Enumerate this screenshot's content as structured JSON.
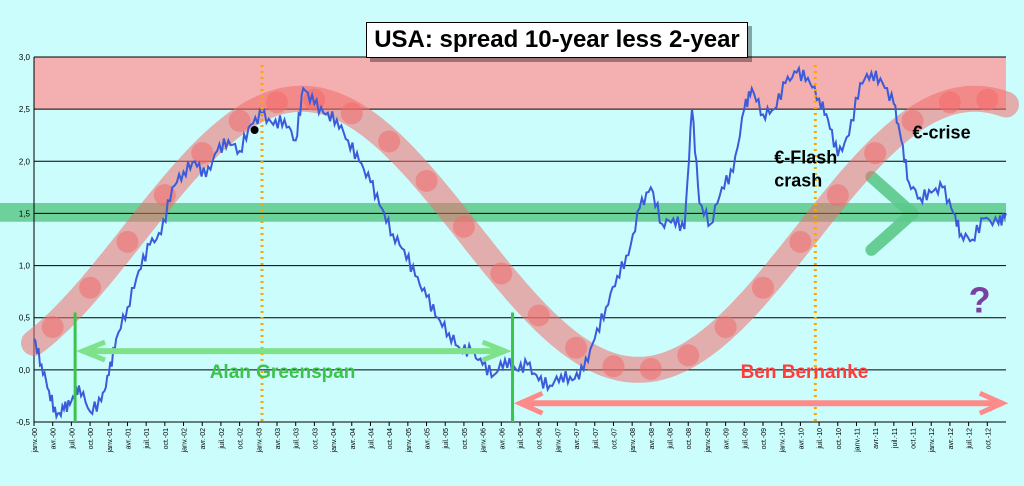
{
  "chart_data": {
    "type": "line",
    "title": "USA: spread 10-year less 2-year",
    "ylim": [
      -0.5,
      3.0
    ],
    "y_ticks": [
      "3,0",
      "2,5",
      "2,0",
      "1,5",
      "1,0",
      "0,5",
      "0,0",
      "-0,5"
    ],
    "y_tick_values": [
      3.0,
      2.5,
      2.0,
      1.5,
      1.0,
      0.5,
      0.0,
      -0.5
    ],
    "x_tick_labels": [
      "janv.-00",
      "avr.-00",
      "juil.-00",
      "oct.-00",
      "janv.-01",
      "avr.-01",
      "juil.-01",
      "oct.-01",
      "janv.-02",
      "avr.-02",
      "juil.-02",
      "oct.-02",
      "janv.-03",
      "avr.-03",
      "juil.-03",
      "oct.-03",
      "janv.-04",
      "avr.-04",
      "juil.-04",
      "oct.-04",
      "janv.-05",
      "avr.-05",
      "juil.-05",
      "oct.-05",
      "janv.-06",
      "avr.-06",
      "juil.-06",
      "oct.-06",
      "janv.-07",
      "avr.-07",
      "juil.-07",
      "oct.-07",
      "janv.-08",
      "avr.-08",
      "juil.-08",
      "oct.-08",
      "janv.-09",
      "avr.-09",
      "juil.-09",
      "oct.-09",
      "janv.-10",
      "avr.-10",
      "juil.-10",
      "oct.-10",
      "janv.-11",
      "avr.-11",
      "juil.-11",
      "oct.-11",
      "janv.-12",
      "avr.-12",
      "juil.-12",
      "oct.-12"
    ],
    "grid": true,
    "series": [
      {
        "color": "#3b5bdb",
        "points": [
          [
            2000.0,
            0.3
          ],
          [
            2000.1,
            0.05
          ],
          [
            2000.2,
            -0.2
          ],
          [
            2000.3,
            -0.45
          ],
          [
            2000.4,
            -0.38
          ],
          [
            2000.5,
            -0.3
          ],
          [
            2000.6,
            -0.15
          ],
          [
            2000.75,
            -0.4
          ],
          [
            2000.9,
            -0.3
          ],
          [
            2001.0,
            -0.05
          ],
          [
            2001.1,
            0.3
          ],
          [
            2001.25,
            0.6
          ],
          [
            2001.4,
            0.95
          ],
          [
            2001.55,
            1.2
          ],
          [
            2001.7,
            1.3
          ],
          [
            2001.85,
            1.75
          ],
          [
            2002.0,
            1.9
          ],
          [
            2002.15,
            2.0
          ],
          [
            2002.3,
            1.85
          ],
          [
            2002.45,
            2.1
          ],
          [
            2002.6,
            2.2
          ],
          [
            2002.75,
            2.1
          ],
          [
            2002.9,
            2.35
          ],
          [
            2003.05,
            2.45
          ],
          [
            2003.2,
            2.35
          ],
          [
            2003.35,
            2.4
          ],
          [
            2003.5,
            2.2
          ],
          [
            2003.6,
            2.7
          ],
          [
            2003.75,
            2.55
          ],
          [
            2003.9,
            2.45
          ],
          [
            2004.05,
            2.4
          ],
          [
            2004.2,
            2.2
          ],
          [
            2004.35,
            2.0
          ],
          [
            2004.5,
            1.8
          ],
          [
            2004.65,
            1.55
          ],
          [
            2004.8,
            1.3
          ],
          [
            2004.95,
            1.15
          ],
          [
            2005.1,
            0.9
          ],
          [
            2005.25,
            0.7
          ],
          [
            2005.4,
            0.5
          ],
          [
            2005.55,
            0.35
          ],
          [
            2005.7,
            0.2
          ],
          [
            2005.85,
            0.18
          ],
          [
            2006.0,
            0.05
          ],
          [
            2006.15,
            -0.05
          ],
          [
            2006.3,
            0.1
          ],
          [
            2006.45,
            0.0
          ],
          [
            2006.6,
            0.05
          ],
          [
            2006.75,
            -0.1
          ],
          [
            2006.9,
            -0.15
          ],
          [
            2007.05,
            -0.05
          ],
          [
            2007.2,
            -0.1
          ],
          [
            2007.35,
            0.0
          ],
          [
            2007.5,
            0.3
          ],
          [
            2007.65,
            0.6
          ],
          [
            2007.8,
            0.9
          ],
          [
            2007.95,
            1.1
          ],
          [
            2008.1,
            1.55
          ],
          [
            2008.25,
            1.75
          ],
          [
            2008.4,
            1.4
          ],
          [
            2008.55,
            1.45
          ],
          [
            2008.7,
            1.35
          ],
          [
            2008.8,
            2.5
          ],
          [
            2008.9,
            1.6
          ],
          [
            2009.05,
            1.4
          ],
          [
            2009.2,
            1.75
          ],
          [
            2009.35,
            1.9
          ],
          [
            2009.5,
            2.5
          ],
          [
            2009.6,
            2.7
          ],
          [
            2009.75,
            2.45
          ],
          [
            2009.9,
            2.5
          ],
          [
            2010.05,
            2.75
          ],
          [
            2010.2,
            2.85
          ],
          [
            2010.35,
            2.8
          ],
          [
            2010.5,
            2.6
          ],
          [
            2010.62,
            2.4
          ],
          [
            2010.75,
            2.05
          ],
          [
            2010.9,
            2.25
          ],
          [
            2011.05,
            2.75
          ],
          [
            2011.2,
            2.85
          ],
          [
            2011.35,
            2.75
          ],
          [
            2011.5,
            2.55
          ],
          [
            2011.6,
            2.2
          ],
          [
            2011.7,
            1.8
          ],
          [
            2011.85,
            1.65
          ],
          [
            2012.0,
            1.7
          ],
          [
            2012.15,
            1.75
          ],
          [
            2012.3,
            1.5
          ],
          [
            2012.4,
            1.3
          ],
          [
            2012.55,
            1.25
          ],
          [
            2012.7,
            1.45
          ],
          [
            2012.9,
            1.4
          ],
          [
            2013.0,
            1.5
          ]
        ]
      }
    ],
    "annotations": {
      "greenspan_label": "Alan  Greenspan",
      "bernanke_label": "Ben  Bernanke",
      "flash_crash_label_1": "€-Flash",
      "flash_crash_label_2": "crash",
      "ecrise_label": "€-crise",
      "question_mark": "?"
    },
    "colors": {
      "background": "#ccfdfd",
      "line": "#3b5bdb",
      "wave": "#f36b6b",
      "band_red": "#f8a7a7",
      "band_green": "#5bc98a",
      "greenspan": "#3cc44a",
      "bernanke": "#ff3b3b",
      "vertical_dotted": "#ffa500",
      "question_mark": "#7b3fa0"
    }
  }
}
